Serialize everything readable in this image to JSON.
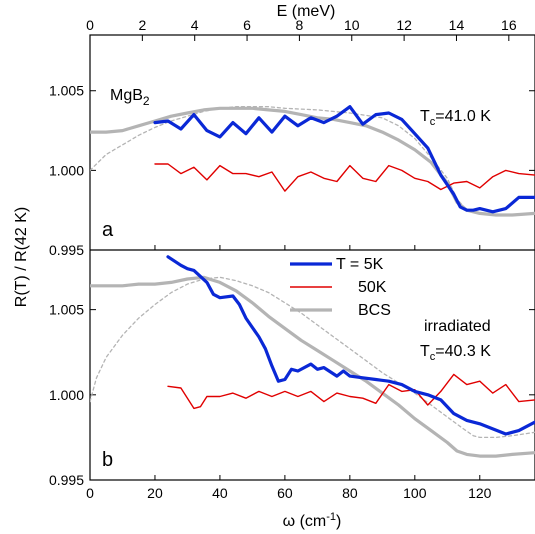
{
  "chart_data": {
    "type": "line",
    "xlabel": "ω (cm",
    "xlabel_sup": "-1",
    "xlabel_end": ")",
    "top_xlabel": "E (meV)",
    "ylabel": "R(T) / R(42 K)",
    "xlim": [
      0,
      137
    ],
    "x_ticks": [
      0,
      20,
      40,
      60,
      80,
      100,
      120
    ],
    "top_xlim_meV": [
      0,
      17
    ],
    "top_ticks": [
      0,
      2,
      4,
      6,
      8,
      10,
      12,
      14,
      16
    ],
    "legend": {
      "placement": "panel-b top-center",
      "entries": [
        {
          "label": "T = 5K",
          "color": "#0a28d6"
        },
        {
          "label": "50K",
          "color": "#e00000"
        },
        {
          "label": "BCS",
          "color": "#b4b4b4"
        }
      ]
    },
    "panels": [
      {
        "letter": "a",
        "material_main": "MgB",
        "material_sub": "2",
        "tc_prefix": "T",
        "tc_sub": "c",
        "tc_value": "=41.0 K",
        "ylim": [
          0.995,
          1.0085
        ],
        "y_ticks": [
          0.995,
          1.0,
          1.005
        ],
        "y_tick_labels": [
          "0.995",
          "1.000",
          "1.005"
        ],
        "series": [
          {
            "name": "T = 5K",
            "color": "#0a28d6",
            "width": 3.2,
            "dash": "",
            "x": [
              20,
              24,
              28,
              32,
              36,
              40,
              44,
              48,
              52,
              56,
              60,
              64,
              68,
              72,
              76,
              80,
              84,
              88,
              92,
              96,
              100,
              104,
              108,
              112,
              114,
              116,
              118,
              120,
              124,
              128,
              132,
              137
            ],
            "y": [
              1.003,
              1.0031,
              1.0026,
              1.0035,
              1.0025,
              1.0021,
              1.003,
              1.0023,
              1.0033,
              1.0024,
              1.0034,
              1.0028,
              1.0033,
              1.003,
              1.0034,
              1.004,
              1.0029,
              1.0035,
              1.0036,
              1.0032,
              1.0023,
              1.0014,
              0.9997,
              0.9985,
              0.9977,
              0.9975,
              0.9975,
              0.9976,
              0.9974,
              0.9976,
              0.9983,
              0.9983
            ]
          },
          {
            "name": "50K",
            "color": "#e00000",
            "width": 1.4,
            "dash": "",
            "x": [
              20,
              24,
              28,
              32,
              36,
              40,
              44,
              48,
              52,
              56,
              60,
              64,
              68,
              72,
              76,
              80,
              84,
              88,
              92,
              96,
              100,
              104,
              108,
              112,
              116,
              120,
              124,
              128,
              132,
              137
            ],
            "y": [
              1.0004,
              1.0004,
              0.9998,
              1.0002,
              0.9994,
              1.0003,
              0.9998,
              0.9998,
              0.9996,
              0.9999,
              0.9987,
              0.9996,
              0.9999,
              0.9995,
              0.9993,
              1.0003,
              0.9995,
              0.9993,
              1.0003,
              1.0,
              0.9995,
              0.9993,
              0.9988,
              0.9992,
              0.9993,
              0.9989,
              0.9996,
              1.0,
              0.9998,
              0.9997
            ]
          },
          {
            "name": "BCS",
            "color": "#b4b4b4",
            "width": 3.2,
            "dash": "",
            "x": [
              0,
              5,
              10,
              15,
              20,
              25,
              30,
              35,
              40,
              45,
              50,
              55,
              60,
              65,
              70,
              75,
              80,
              85,
              90,
              95,
              100,
              105,
              110,
              113,
              116,
              120,
              125,
              130,
              137
            ],
            "y": [
              1.0024,
              1.0024,
              1.0025,
              1.0028,
              1.0031,
              1.0034,
              1.0036,
              1.0038,
              1.0039,
              1.0039,
              1.0039,
              1.0038,
              1.0037,
              1.0035,
              1.0033,
              1.0032,
              1.003,
              1.0028,
              1.0024,
              1.0019,
              1.0013,
              1.0005,
              0.9992,
              0.998,
              0.9975,
              0.9973,
              0.9972,
              0.9972,
              0.9973
            ]
          },
          {
            "name": "BCS-dashed",
            "color": "#b4b4b4",
            "width": 1.3,
            "dash": "3,3",
            "x": [
              0,
              2,
              5,
              10,
              15,
              20,
              25,
              30,
              35,
              40,
              45,
              50,
              55,
              60,
              70,
              80,
              90,
              95,
              100,
              105,
              110,
              113,
              116,
              120,
              125,
              130,
              137
            ],
            "y": [
              1.0,
              1.0004,
              1.001,
              1.0016,
              1.0022,
              1.0027,
              1.0031,
              1.0034,
              1.0037,
              1.0039,
              1.004,
              1.004,
              1.004,
              1.0039,
              1.0038,
              1.0036,
              1.0033,
              1.0028,
              1.002,
              1.0008,
              0.9995,
              0.9982,
              0.9975,
              0.9973,
              0.9972,
              0.9972,
              0.9973
            ]
          }
        ]
      },
      {
        "letter": "b",
        "material_main": "irradiated",
        "material_sub": "",
        "tc_prefix": "T",
        "tc_sub": "c",
        "tc_value": "=40.3 K",
        "ylim": [
          0.995,
          1.0085
        ],
        "y_ticks": [
          0.995,
          1.0,
          1.005
        ],
        "y_tick_labels": [
          "0.995",
          "1.000",
          "1.005"
        ],
        "series": [
          {
            "name": "T = 5K",
            "color": "#0a28d6",
            "width": 3.2,
            "dash": "",
            "x": [
              24,
              28,
              30,
              32,
              36,
              38,
              40,
              44,
              46,
              48,
              52,
              54,
              56,
              58,
              60,
              62,
              64,
              68,
              70,
              72,
              76,
              78,
              80,
              84,
              88,
              92,
              96,
              100,
              104,
              108,
              112,
              116,
              120,
              124,
              128,
              132,
              137
            ],
            "y": [
              1.0081,
              1.0076,
              1.0074,
              1.0073,
              1.0066,
              1.0059,
              1.0057,
              1.0058,
              1.0053,
              1.0045,
              1.0034,
              1.0027,
              1.0017,
              1.0008,
              1.0009,
              1.0015,
              1.0014,
              1.0018,
              1.0015,
              1.0016,
              1.0011,
              1.0014,
              1.0011,
              1.001,
              1.0009,
              1.0008,
              1.0006,
              1.0002,
              1.0,
              0.9997,
              0.9989,
              0.9985,
              0.9983,
              0.998,
              0.9977,
              0.9979,
              0.9984
            ]
          },
          {
            "name": "50K",
            "color": "#e00000",
            "width": 1.4,
            "dash": "",
            "x": [
              24,
              28,
              32,
              34,
              36,
              40,
              44,
              48,
              52,
              56,
              60,
              64,
              68,
              72,
              76,
              80,
              84,
              88,
              92,
              96,
              100,
              104,
              108,
              112,
              116,
              120,
              124,
              128,
              132,
              137
            ],
            "y": [
              1.0005,
              1.0004,
              0.9992,
              0.9993,
              0.9999,
              0.9999,
              1.0001,
              0.9998,
              1.0002,
              0.9999,
              1.0002,
              0.9999,
              1.0002,
              0.9996,
              1.0001,
              0.9999,
              0.9998,
              0.9995,
              1.0006,
              1.0002,
              1.0003,
              0.9994,
              1.0002,
              1.0012,
              1.0006,
              1.0008,
              1.0001,
              1.0006,
              0.9996,
              0.9997
            ]
          },
          {
            "name": "BCS",
            "color": "#b4b4b4",
            "width": 3.2,
            "dash": "",
            "x": [
              0,
              5,
              10,
              15,
              20,
              25,
              30,
              35,
              40,
              45,
              50,
              55,
              60,
              65,
              70,
              75,
              80,
              85,
              90,
              95,
              100,
              105,
              110,
              113,
              116,
              120,
              125,
              130,
              137
            ],
            "y": [
              1.0064,
              1.0064,
              1.0064,
              1.0065,
              1.0065,
              1.0066,
              1.0068,
              1.0069,
              1.0066,
              1.0061,
              1.0054,
              1.0046,
              1.0039,
              1.0032,
              1.0026,
              1.002,
              1.0014,
              1.0008,
              1.0001,
              0.9994,
              0.9986,
              0.9979,
              0.9972,
              0.9967,
              0.9965,
              0.9964,
              0.9964,
              0.9965,
              0.9966
            ]
          },
          {
            "name": "BCS-dashed",
            "color": "#b4b4b4",
            "width": 1.3,
            "dash": "3,3",
            "x": [
              0,
              2,
              5,
              10,
              15,
              20,
              25,
              30,
              35,
              40,
              45,
              50,
              55,
              60,
              65,
              70,
              75,
              80,
              85,
              90,
              95,
              100,
              105,
              110,
              115,
              118,
              120,
              125,
              130,
              137
            ],
            "y": [
              0.9996,
              1.001,
              1.0022,
              1.0035,
              1.0045,
              1.0053,
              1.006,
              1.0065,
              1.0068,
              1.0069,
              1.0067,
              1.0064,
              1.006,
              1.0054,
              1.0048,
              1.0041,
              1.0034,
              1.0027,
              1.002,
              1.0013,
              1.0007,
              1.0001,
              0.9994,
              0.9987,
              0.998,
              0.9976,
              0.9975,
              0.9975,
              0.9976,
              0.9978
            ]
          }
        ]
      }
    ]
  }
}
